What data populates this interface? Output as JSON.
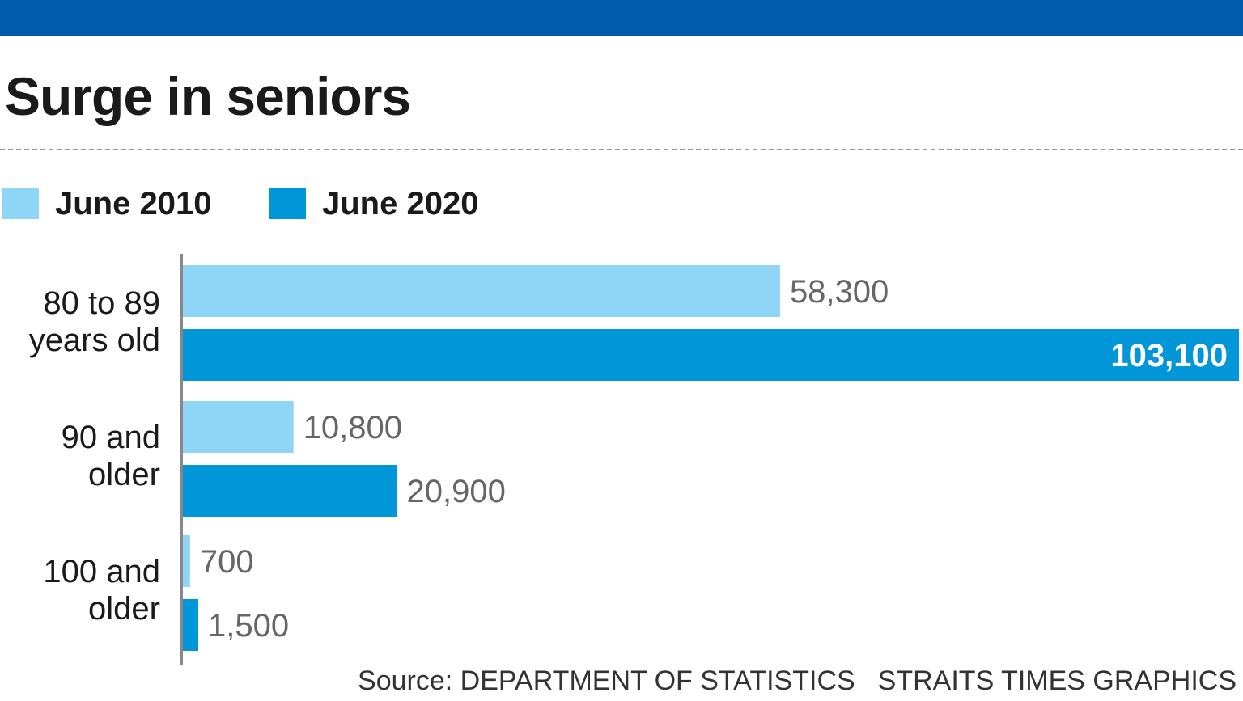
{
  "colors": {
    "header_band": "#005bab",
    "series_2010": "#8fd6f6",
    "series_2020": "#0096d8",
    "value_label": "#666666",
    "value_label_inside": "#ffffff",
    "axis": "#888888"
  },
  "chart_data": {
    "type": "bar",
    "orientation": "horizontal",
    "title": "Surge in seniors",
    "categories": [
      "80 to 89 years old",
      "90 and older",
      "100 and older"
    ],
    "category_lines": [
      [
        "80 to 89",
        "years old"
      ],
      [
        "90 and",
        "older"
      ],
      [
        "100 and",
        "older"
      ]
    ],
    "series": [
      {
        "name": "June 2010",
        "values": [
          58300,
          10800,
          700
        ],
        "labels": [
          "58,300",
          "10,800",
          "700"
        ]
      },
      {
        "name": "June 2020",
        "values": [
          103100,
          20900,
          1500
        ],
        "labels": [
          "103,100",
          "20,900",
          "1,500"
        ]
      }
    ],
    "xlim": [
      0,
      103100
    ],
    "legend_position": "top-left",
    "grid": false
  },
  "footer": {
    "source": "Source: DEPARTMENT OF STATISTICS",
    "credit": "STRAITS TIMES GRAPHICS"
  }
}
